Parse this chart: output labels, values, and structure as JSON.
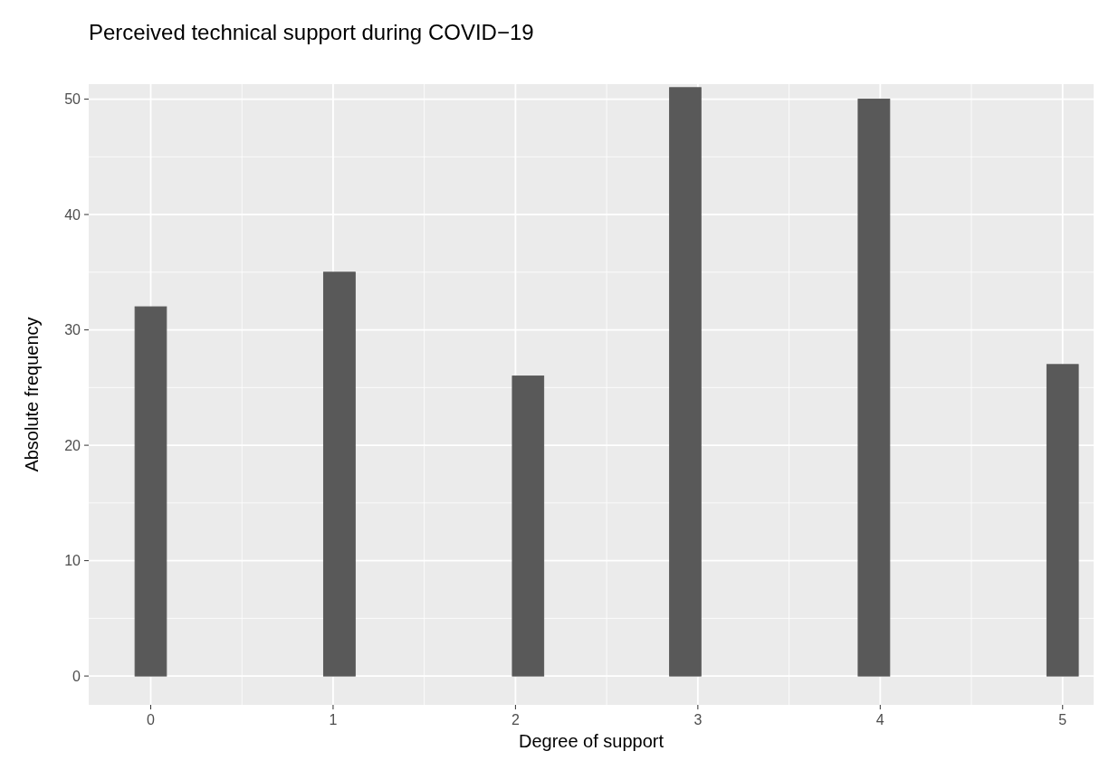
{
  "chart_data": {
    "type": "histogram",
    "title": "Perceived technical support during COVID−19",
    "xlabel": "Degree of support",
    "ylabel": "Absolute frequency",
    "bins": [
      -0.086,
      0.086,
      0.259,
      0.431,
      0.603,
      0.776,
      0.948,
      1.121,
      1.293,
      1.466,
      1.638,
      1.81,
      1.983,
      2.155,
      2.328,
      2.5,
      2.672,
      2.845,
      3.017,
      3.19,
      3.362,
      3.534,
      3.707,
      3.879,
      4.052,
      4.224,
      4.397,
      4.569,
      4.741,
      4.914,
      5.086
    ],
    "values": [
      32,
      0,
      0,
      0,
      0,
      0,
      35,
      0,
      0,
      0,
      0,
      0,
      26,
      0,
      0,
      0,
      0,
      51,
      0,
      0,
      0,
      0,
      0,
      50,
      0,
      0,
      0,
      0,
      0,
      27
    ],
    "color": "#595959",
    "xlim": [
      -0.34,
      5.17
    ],
    "ylim": [
      -2.5,
      51.3
    ],
    "xticks": [
      0,
      1,
      2,
      3,
      4,
      5
    ],
    "yticks": [
      0,
      10,
      20,
      30,
      40,
      50
    ],
    "grid": true
  }
}
